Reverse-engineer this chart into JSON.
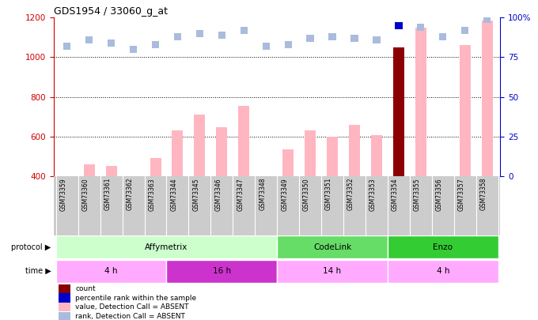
{
  "title": "GDS1954 / 33060_g_at",
  "samples": [
    "GSM73359",
    "GSM73360",
    "GSM73361",
    "GSM73362",
    "GSM73363",
    "GSM73344",
    "GSM73345",
    "GSM73346",
    "GSM73347",
    "GSM73348",
    "GSM73349",
    "GSM73350",
    "GSM73351",
    "GSM73352",
    "GSM73353",
    "GSM73354",
    "GSM73355",
    "GSM73356",
    "GSM73357",
    "GSM73358"
  ],
  "values": [
    400,
    460,
    450,
    400,
    490,
    630,
    710,
    645,
    755,
    400,
    535,
    630,
    600,
    660,
    605,
    1048,
    1150,
    400,
    1060,
    1185
  ],
  "ranks": [
    82,
    86,
    84,
    80,
    83,
    88,
    90,
    89,
    92,
    82,
    83,
    87,
    88,
    87,
    86,
    95,
    94,
    88,
    92,
    99
  ],
  "is_dark_red": [
    false,
    false,
    false,
    false,
    false,
    false,
    false,
    false,
    false,
    false,
    false,
    false,
    false,
    false,
    false,
    true,
    false,
    false,
    false,
    false
  ],
  "bar_color_normal": "#FFB6C1",
  "bar_color_dark": "#8B0000",
  "rank_color_normal": "#AABBDD",
  "rank_color_dark": "#0000CC",
  "ylim_left": [
    400,
    1200
  ],
  "ylim_right": [
    0,
    100
  ],
  "yticks_left": [
    400,
    600,
    800,
    1000,
    1200
  ],
  "yticks_right": [
    0,
    25,
    50,
    75,
    100
  ],
  "yaxis_left_color": "#CC0000",
  "yaxis_right_color": "#0000CC",
  "protocol_row": [
    {
      "label": "Affymetrix",
      "start": 0,
      "end": 10,
      "color": "#CCFFCC"
    },
    {
      "label": "CodeLink",
      "start": 10,
      "end": 15,
      "color": "#66DD66"
    },
    {
      "label": "Enzo",
      "start": 15,
      "end": 20,
      "color": "#33CC33"
    }
  ],
  "time_row": [
    {
      "label": "4 h",
      "start": 0,
      "end": 5,
      "color": "#FFAAFF"
    },
    {
      "label": "16 h",
      "start": 5,
      "end": 10,
      "color": "#CC33CC"
    },
    {
      "label": "14 h",
      "start": 10,
      "end": 15,
      "color": "#FFAAFF"
    },
    {
      "label": "4 h",
      "start": 15,
      "end": 20,
      "color": "#FFAAFF"
    }
  ],
  "legend_items": [
    {
      "color": "#8B0000",
      "label": "count"
    },
    {
      "color": "#0000CC",
      "label": "percentile rank within the sample"
    },
    {
      "color": "#FFB6C1",
      "label": "value, Detection Call = ABSENT"
    },
    {
      "color": "#AABBDD",
      "label": "rank, Detection Call = ABSENT"
    }
  ],
  "bg_color": "white",
  "rank_dot_size": 45,
  "rank_dark_index": 15,
  "xtick_bg": "#CCCCCC"
}
